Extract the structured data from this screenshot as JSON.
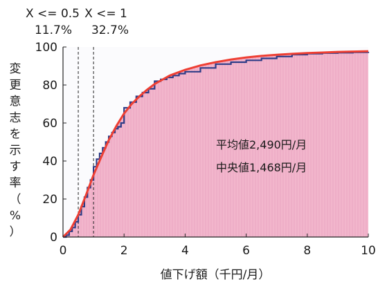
{
  "chart_data": {
    "type": "area",
    "xlabel": "値下げ額（千円/月）",
    "ylabel": [
      "変",
      "更",
      "意",
      "志",
      "を",
      "示",
      "す",
      "率",
      "（",
      "%",
      "）"
    ],
    "xlim": [
      0,
      10
    ],
    "ylim": [
      0,
      100
    ],
    "x_ticks": [
      "0",
      "2",
      "4",
      "6",
      "8",
      "10"
    ],
    "y_ticks": [
      "0",
      "20",
      "40",
      "60",
      "80",
      "100"
    ],
    "threshold_lines": [
      {
        "x": 0.5,
        "label": "X <= 0.5",
        "percent": "11.7%"
      },
      {
        "x": 1.0,
        "label": "X <= 1",
        "percent": "32.7%"
      }
    ],
    "annotations": [
      "平均値2,490円/月",
      "中央値1,468円/月"
    ],
    "series": [
      {
        "style": "step",
        "x": [
          0,
          0.1,
          0.2,
          0.3,
          0.4,
          0.5,
          0.6,
          0.7,
          0.8,
          0.9,
          1.0,
          1.1,
          1.2,
          1.3,
          1.4,
          1.5,
          1.6,
          1.7,
          1.8,
          1.9,
          2.0,
          2.2,
          2.4,
          2.6,
          2.8,
          3.0,
          3.2,
          3.4,
          3.6,
          3.8,
          4.0,
          4.5,
          5.0,
          5.5,
          6.0,
          6.5,
          7.0,
          7.5,
          8.0,
          8.5,
          9.0,
          9.5,
          10.0
        ],
        "y": [
          0,
          1,
          3,
          5,
          8,
          11.7,
          16,
          21,
          26,
          30,
          37,
          41,
          44,
          47,
          50,
          53,
          55,
          57,
          58,
          60,
          68,
          71,
          74,
          76,
          78,
          82,
          83,
          84,
          85,
          86,
          87,
          89,
          91,
          92,
          93,
          94,
          95,
          96,
          96.5,
          96.8,
          97,
          97.2,
          97.5
        ]
      },
      {
        "style": "fit",
        "x": [
          0,
          0.25,
          0.5,
          0.75,
          1.0,
          1.25,
          1.5,
          1.75,
          2.0,
          2.25,
          2.5,
          2.75,
          3.0,
          3.5,
          4.0,
          4.5,
          5.0,
          5.5,
          6.0,
          6.5,
          7.0,
          7.5,
          8.0,
          8.5,
          9.0,
          9.5,
          10.0
        ],
        "y": [
          0,
          4,
          11.7,
          22,
          32.7,
          42,
          51,
          58.5,
          65,
          70,
          74,
          77.5,
          80.5,
          85,
          88,
          90.3,
          92,
          93.4,
          94.5,
          95.3,
          95.9,
          96.4,
          96.8,
          97.1,
          97.4,
          97.6,
          97.8
        ]
      }
    ],
    "colors": {
      "fill": "#f2b6cc",
      "fill_stripe": "#e79bbb",
      "fit_line": "#ee3f33",
      "step_line": "#2c3b86",
      "guide": "#222222"
    }
  }
}
